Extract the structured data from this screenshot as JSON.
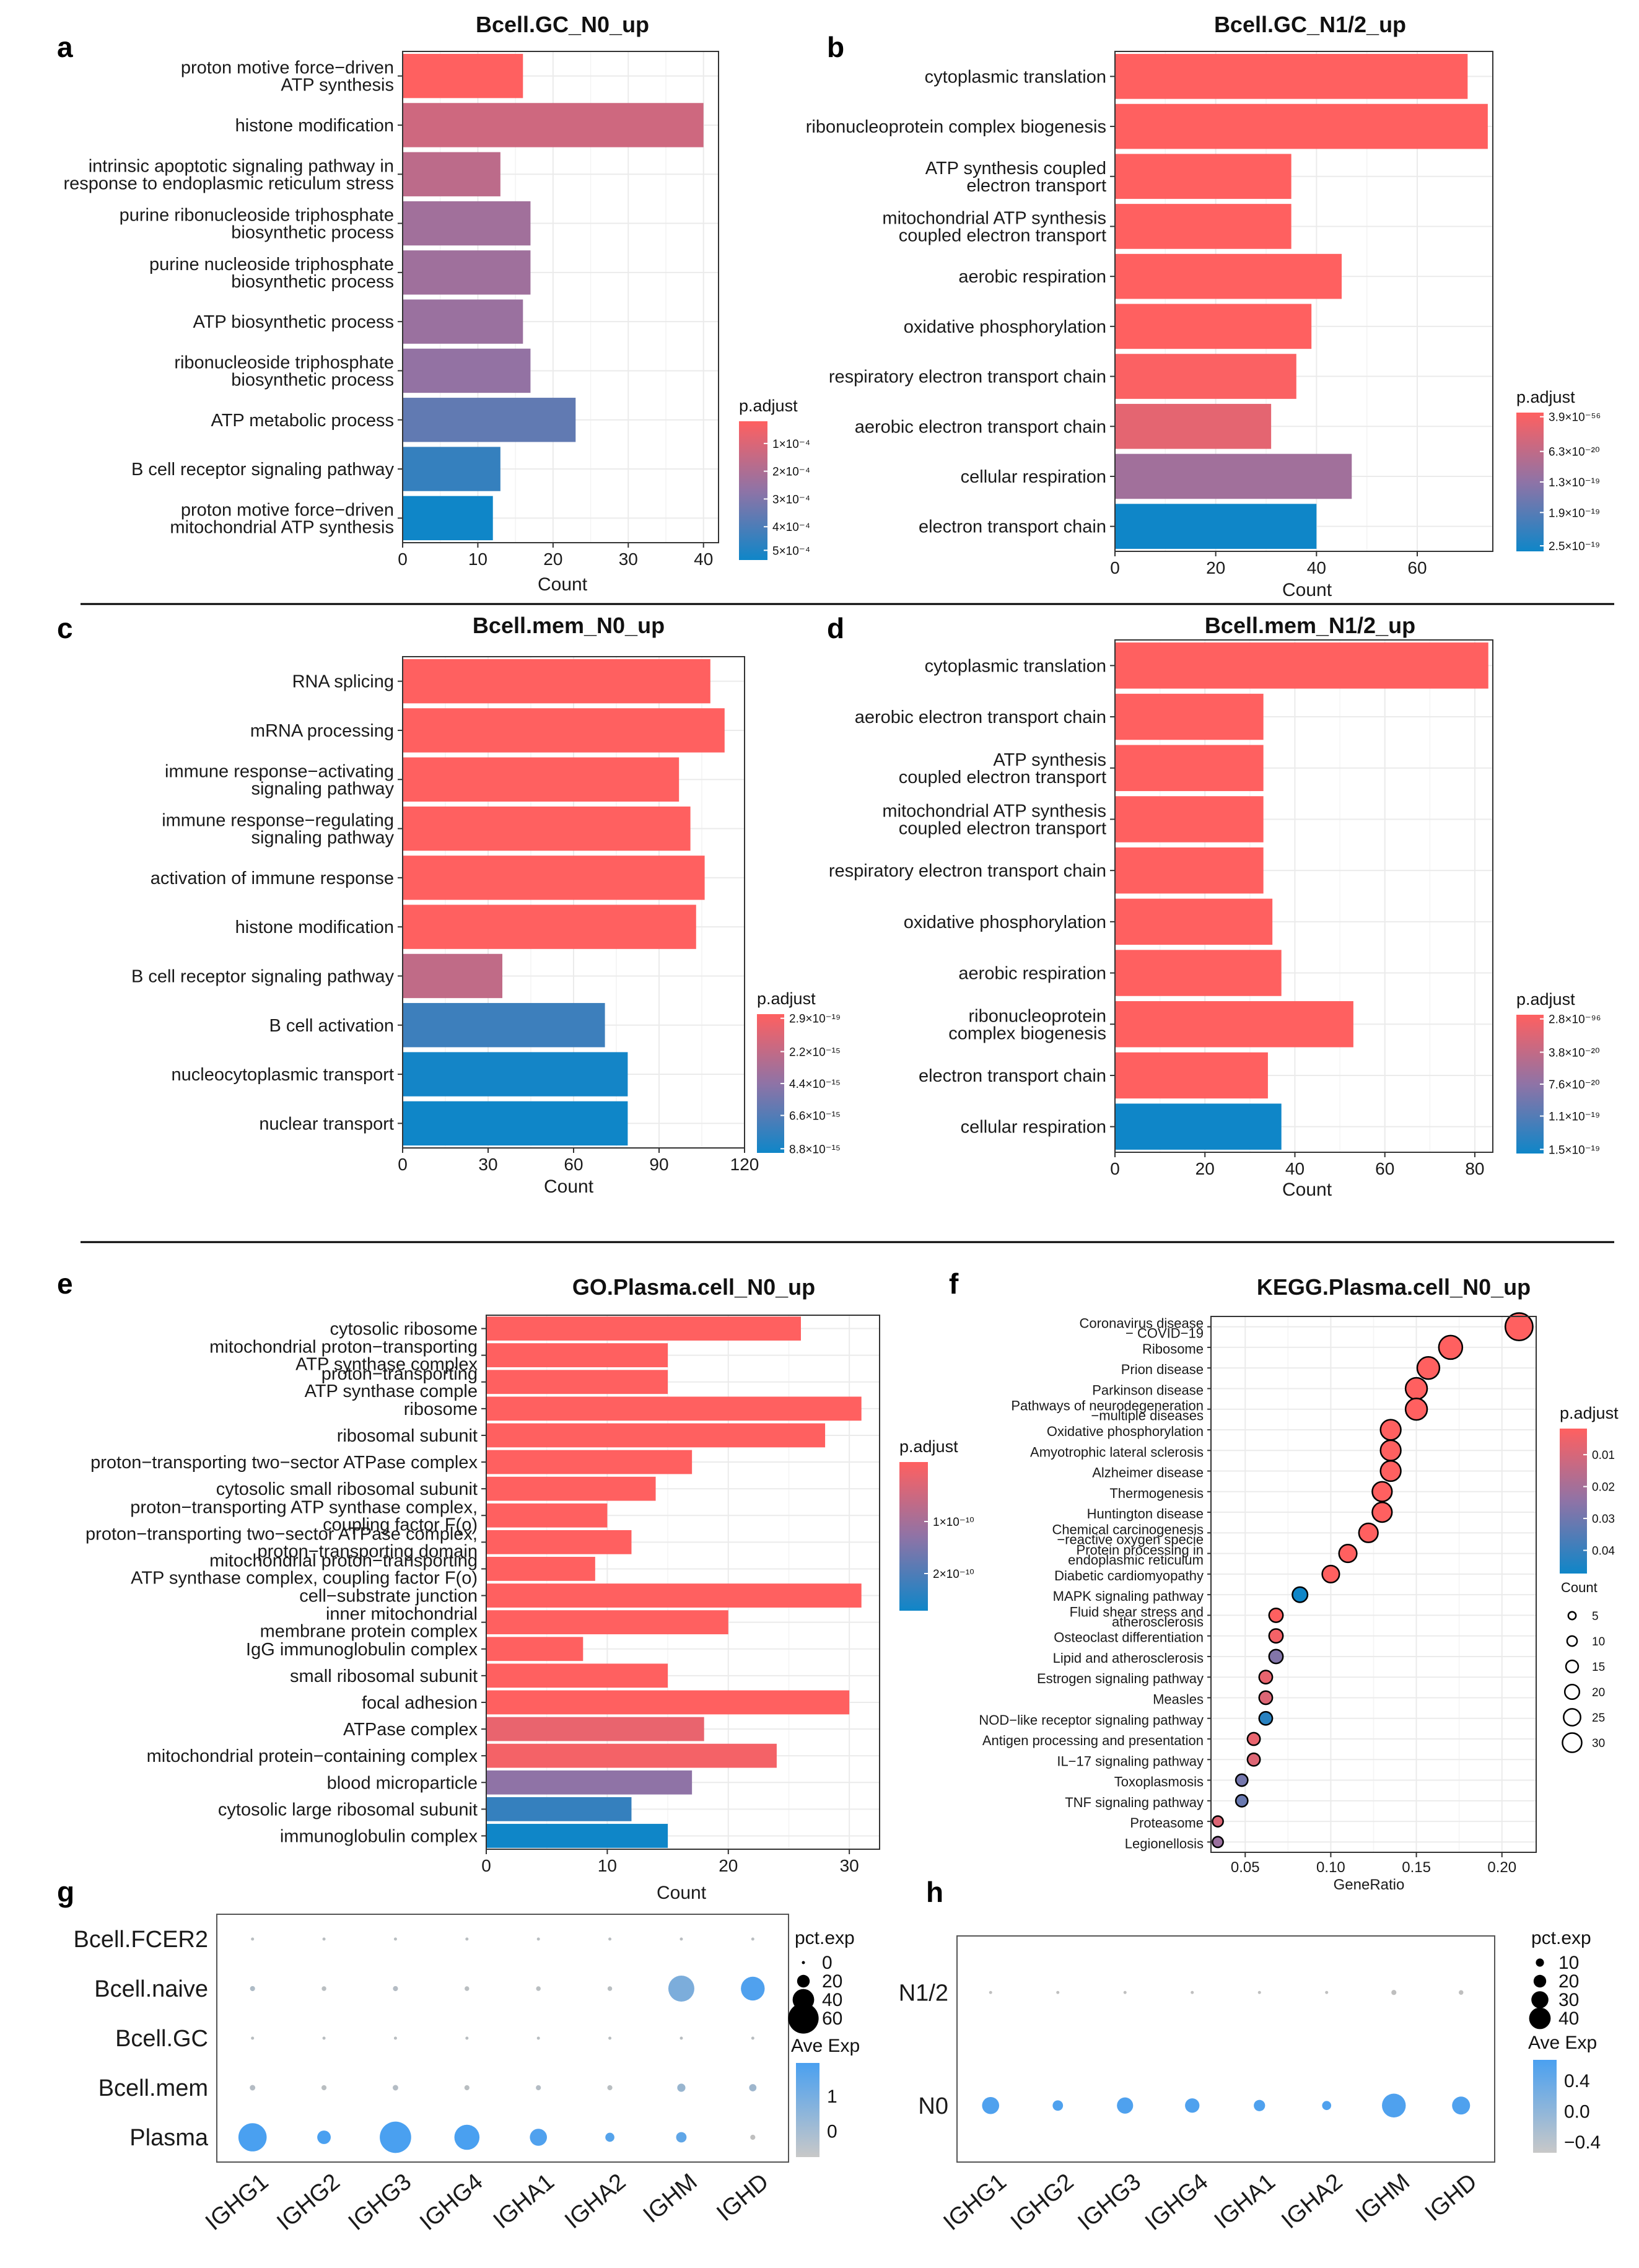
{
  "colors": {
    "low": "#0f86c8",
    "mid": "#8f73a6",
    "high": "#ff6060",
    "dotLow": "#bfbfbf",
    "dotHigh": "#4aa0f0"
  },
  "separators": [
    {
      "name": "separator-1"
    },
    {
      "name": "separator-2"
    }
  ],
  "chart_data": [
    {
      "id": "a",
      "panel_label": "a",
      "type": "bar",
      "orientation": "horizontal",
      "title": "Bcell.GC_N0_up",
      "xlabel": "Count",
      "xlim": [
        0,
        42
      ],
      "xticks": [
        0,
        10,
        20,
        30,
        40
      ],
      "categories": [
        [
          "proton motive force−driven",
          "ATP synthesis"
        ],
        [
          "histone modification"
        ],
        [
          "intrinsic apoptotic signaling pathway in",
          "response to endoplasmic reticulum stress"
        ],
        [
          "purine ribonucleoside triphosphate",
          "biosynthetic process"
        ],
        [
          "purine nucleoside triphosphate",
          "biosynthetic process"
        ],
        [
          "ATP biosynthetic process"
        ],
        [
          "ribonucleoside triphosphate",
          "biosynthetic process"
        ],
        [
          "ATP metabolic process"
        ],
        [
          "B cell receptor signaling pathway"
        ],
        [
          "proton motive force−driven",
          "mitochondrial ATP synthesis"
        ]
      ],
      "values": [
        16,
        40,
        13,
        17,
        17,
        16,
        17,
        23,
        13,
        12
      ],
      "color_values": [
        0,
        0.22,
        0.3,
        0.42,
        0.43,
        0.45,
        0.48,
        0.68,
        0.85,
        1
      ],
      "legend": {
        "title": "p.adjust",
        "labels": [
          "1×10⁻⁴",
          "2×10⁻⁴",
          "3×10⁻⁴",
          "4×10⁻⁴",
          "5×10⁻⁴"
        ],
        "positions": [
          0.16,
          0.36,
          0.56,
          0.76,
          0.93
        ]
      }
    },
    {
      "id": "b",
      "panel_label": "b",
      "type": "bar",
      "orientation": "horizontal",
      "title": "Bcell.GC_N1/2_up",
      "xlabel": "Count",
      "xlim": [
        0,
        75
      ],
      "xticks": [
        0,
        20,
        40,
        60
      ],
      "categories": [
        [
          "cytoplasmic translation"
        ],
        [
          "ribonucleoprotein complex biogenesis"
        ],
        [
          "ATP synthesis coupled",
          "electron transport"
        ],
        [
          "mitochondrial ATP synthesis",
          "coupled electron transport"
        ],
        [
          "aerobic respiration"
        ],
        [
          "oxidative phosphorylation"
        ],
        [
          "respiratory electron transport chain"
        ],
        [
          "aerobic electron transport chain"
        ],
        [
          "cellular respiration"
        ],
        [
          "electron transport chain"
        ]
      ],
      "values": [
        70,
        74,
        35,
        35,
        45,
        39,
        36,
        31,
        47,
        40
      ],
      "color_values": [
        0,
        0,
        0,
        0,
        0,
        0,
        0.02,
        0.12,
        0.42,
        1
      ],
      "legend": {
        "title": "p.adjust",
        "labels": [
          "3.9×10⁻⁵⁶",
          "6.3×10⁻²⁰",
          "1.3×10⁻¹⁹",
          "1.9×10⁻¹⁹",
          "2.5×10⁻¹⁹"
        ],
        "positions": [
          0.03,
          0.28,
          0.5,
          0.72,
          0.96
        ]
      }
    },
    {
      "id": "c",
      "panel_label": "c",
      "type": "bar",
      "orientation": "horizontal",
      "title": "Bcell.mem_N0_up",
      "xlabel": "Count",
      "xlim": [
        0,
        120
      ],
      "xticks": [
        0,
        30,
        60,
        90,
        120
      ],
      "categories": [
        [
          "RNA splicing"
        ],
        [
          "mRNA processing"
        ],
        [
          "immune response−activating",
          "signaling pathway"
        ],
        [
          "immune response−regulating",
          "signaling pathway"
        ],
        [
          "activation of immune response"
        ],
        [
          "histone modification"
        ],
        [
          "B cell receptor signaling pathway"
        ],
        [
          "B cell activation"
        ],
        [
          "nucleocytoplasmic transport"
        ],
        [
          "nuclear transport"
        ]
      ],
      "values": [
        108,
        113,
        97,
        101,
        106,
        103,
        35,
        71,
        79,
        79
      ],
      "color_values": [
        0,
        0,
        0,
        0,
        0,
        0,
        0.28,
        0.82,
        0.98,
        1
      ],
      "legend": {
        "title": "p.adjust",
        "labels": [
          "2.9×10⁻¹⁹",
          "2.2×10⁻¹⁵",
          "4.4×10⁻¹⁵",
          "6.6×10⁻¹⁵",
          "8.8×10⁻¹⁵"
        ],
        "positions": [
          0.03,
          0.27,
          0.5,
          0.73,
          0.97
        ]
      }
    },
    {
      "id": "d",
      "panel_label": "d",
      "type": "bar",
      "orientation": "horizontal",
      "title": "Bcell.mem_N1/2_up",
      "xlabel": "Count",
      "xlim": [
        0,
        84
      ],
      "xticks": [
        0,
        20,
        40,
        60,
        80
      ],
      "categories": [
        [
          "cytoplasmic translation"
        ],
        [
          "aerobic electron transport chain"
        ],
        [
          "ATP synthesis",
          "coupled electron transport"
        ],
        [
          "mitochondrial ATP synthesis",
          "coupled electron transport"
        ],
        [
          "respiratory electron transport chain"
        ],
        [
          "oxidative phosphorylation"
        ],
        [
          "aerobic respiration"
        ],
        [
          "ribonucleoprotein",
          "complex biogenesis"
        ],
        [
          "electron transport chain"
        ],
        [
          "cellular respiration"
        ]
      ],
      "values": [
        83,
        33,
        33,
        33,
        33,
        35,
        37,
        53,
        34,
        37
      ],
      "color_values": [
        0,
        0,
        0,
        0,
        0,
        0,
        0,
        0,
        0,
        1
      ],
      "legend": {
        "title": "p.adjust",
        "labels": [
          "2.8×10⁻⁹⁶",
          "3.8×10⁻²⁰",
          "7.6×10⁻²⁰",
          "1.1×10⁻¹⁹",
          "1.5×10⁻¹⁹"
        ],
        "positions": [
          0.03,
          0.27,
          0.5,
          0.73,
          0.97
        ]
      }
    },
    {
      "id": "e",
      "panel_label": "e",
      "type": "bar",
      "orientation": "horizontal",
      "title": "GO.Plasma.cell_N0_up",
      "xlabel": "Count",
      "xlim": [
        0,
        32.5
      ],
      "xticks": [
        0,
        10,
        20,
        30
      ],
      "categories": [
        [
          "cytosolic ribosome"
        ],
        [
          "mitochondrial proton−transporting",
          "ATP synthase complex"
        ],
        [
          "proton−transporting",
          "ATP synthase comple"
        ],
        [
          "ribosome"
        ],
        [
          "ribosomal subunit"
        ],
        [
          "proton−transporting two−sector ATPase complex"
        ],
        [
          "cytosolic small ribosomal subunit"
        ],
        [
          "proton−transporting ATP synthase complex,",
          "coupling factor F(o)"
        ],
        [
          "proton−transporting two−sector ATPase complex,",
          "proton−transporting domain"
        ],
        [
          "mitochondrial proton−transporting",
          "ATP synthase complex, coupling factor F(o)"
        ],
        [
          "cell−substrate junction"
        ],
        [
          "inner mitochondrial",
          "membrane protein complex"
        ],
        [
          "IgG immunoglobulin complex"
        ],
        [
          "small ribosomal subunit"
        ],
        [
          "focal adhesion"
        ],
        [
          "ATPase complex"
        ],
        [
          "mitochondrial protein−containing complex"
        ],
        [
          "blood microparticle"
        ],
        [
          "cytosolic large ribosomal subunit"
        ],
        [
          "immunoglobulin complex"
        ]
      ],
      "values": [
        26,
        15,
        15,
        31,
        28,
        17,
        14,
        10,
        12,
        9,
        31,
        20,
        8,
        15,
        30,
        18,
        24,
        17,
        12,
        15
      ],
      "color_values": [
        0,
        0,
        0,
        0,
        0,
        0,
        0,
        0,
        0,
        0,
        0,
        0,
        0,
        0,
        0,
        0.1,
        0.05,
        0.5,
        0.85,
        1
      ],
      "legend": {
        "title": "p.adjust",
        "labels": [
          "1×10⁻¹⁰",
          "2×10⁻¹⁰"
        ],
        "positions": [
          0.4,
          0.75
        ]
      }
    },
    {
      "id": "f",
      "panel_label": "f",
      "type": "scatter",
      "title": "KEGG.Plasma.cell_N0_up",
      "xlabel": "GeneRatio",
      "xlim": [
        0.03,
        0.22
      ],
      "xticks": [
        0.05,
        0.1,
        0.15,
        0.2
      ],
      "categories": [
        [
          "Coronavirus disease",
          "− COVID−19"
        ],
        [
          "Ribosome"
        ],
        [
          "Prion disease"
        ],
        [
          "Parkinson disease"
        ],
        [
          "Pathways of neurodegeneration",
          "−multiple diseases"
        ],
        [
          "Oxidative phosphorylation"
        ],
        [
          "Amyotrophic lateral sclerosis"
        ],
        [
          "Alzheimer disease"
        ],
        [
          "Thermogenesis"
        ],
        [
          "Huntington disease"
        ],
        [
          "Chemical carcinogenesis",
          "−reactive oxygen specie"
        ],
        [
          "Protein processing in",
          "endoplasmic reticulum"
        ],
        [
          "Diabetic cardiomyopathy"
        ],
        [
          "MAPK signaling pathway"
        ],
        [
          "Fluid shear stress and",
          "atherosclerosis"
        ],
        [
          "Osteoclast differentiation"
        ],
        [
          "Lipid and atherosclerosis"
        ],
        [
          "Estrogen signaling pathway"
        ],
        [
          "Measles"
        ],
        [
          "NOD−like receptor signaling pathway"
        ],
        [
          "Antigen processing and presentation"
        ],
        [
          "IL−17 signaling pathway"
        ],
        [
          "Toxoplasmosis"
        ],
        [
          "TNF signaling pathway"
        ],
        [
          "Proteasome"
        ],
        [
          "Legionellosis"
        ]
      ],
      "x": [
        0.21,
        0.17,
        0.157,
        0.15,
        0.15,
        0.135,
        0.135,
        0.135,
        0.13,
        0.13,
        0.122,
        0.11,
        0.1,
        0.082,
        0.068,
        0.068,
        0.068,
        0.062,
        0.062,
        0.062,
        0.055,
        0.055,
        0.048,
        0.048,
        0.034,
        0.034
      ],
      "count": [
        31,
        25,
        23,
        22,
        22,
        20,
        20,
        20,
        19,
        19,
        18,
        16,
        15,
        12,
        10,
        10,
        10,
        9,
        9,
        9,
        8,
        8,
        7,
        7,
        5,
        5
      ],
      "color_values": [
        0,
        0,
        0,
        0,
        0,
        0,
        0,
        0,
        0,
        0,
        0,
        0,
        0,
        1,
        0,
        0.05,
        0.55,
        0.1,
        0.15,
        0.9,
        0.1,
        0.15,
        0.6,
        0.65,
        0.15,
        0.45
      ],
      "legend": {
        "title": "p.adjust",
        "labels": [
          "0.01",
          "0.02",
          "0.03",
          "0.04"
        ],
        "positions": [
          0.18,
          0.4,
          0.62,
          0.84
        ]
      },
      "size_legend": {
        "title": "Count",
        "values": [
          5,
          10,
          15,
          20,
          25,
          30
        ]
      }
    },
    {
      "id": "g",
      "panel_label": "g",
      "type": "scatter",
      "subtype": "dotplot",
      "genes": [
        "IGHG1",
        "IGHG2",
        "IGHG3",
        "IGHG4",
        "IGHA1",
        "IGHA2",
        "IGHM",
        "IGHD"
      ],
      "groups": [
        "Bcell.FCER2",
        "Bcell.naive",
        "Bcell.GC",
        "Bcell.mem",
        "Plasma"
      ],
      "pct_exp": [
        [
          1,
          1,
          1,
          1,
          1,
          1,
          1,
          1
        ],
        [
          3,
          2,
          3,
          2,
          2,
          2,
          50,
          45
        ],
        [
          1,
          1,
          1,
          1,
          1,
          1,
          1,
          1
        ],
        [
          4,
          3,
          4,
          3,
          3,
          3,
          10,
          8
        ],
        [
          55,
          22,
          62,
          48,
          30,
          12,
          15,
          3
        ]
      ],
      "ave_exp": [
        [
          -0.3,
          -0.3,
          -0.3,
          -0.3,
          -0.3,
          -0.3,
          -0.3,
          -0.3
        ],
        [
          -0.1,
          -0.3,
          -0.2,
          -0.3,
          -0.3,
          -0.3,
          0.8,
          1.6
        ],
        [
          -0.3,
          -0.3,
          -0.3,
          -0.3,
          -0.3,
          -0.3,
          -0.3,
          -0.3
        ],
        [
          -0.2,
          -0.3,
          -0.2,
          -0.3,
          -0.2,
          -0.3,
          0.3,
          0.2
        ],
        [
          1.7,
          1.7,
          1.7,
          1.7,
          1.6,
          1.5,
          1.3,
          -0.4
        ]
      ],
      "size_legend": {
        "title": "pct.exp",
        "values": [
          0,
          20,
          40,
          60
        ]
      },
      "color_legend": {
        "title": "Ave Exp",
        "labels": [
          "1",
          "0"
        ],
        "positions": [
          0.35,
          0.72
        ]
      }
    },
    {
      "id": "h",
      "panel_label": "h",
      "type": "scatter",
      "subtype": "dotplot",
      "genes": [
        "IGHG1",
        "IGHG2",
        "IGHG3",
        "IGHG4",
        "IGHA1",
        "IGHA2",
        "IGHM",
        "IGHD"
      ],
      "groups": [
        "N1/2",
        "N0"
      ],
      "pct_exp": [
        [
          1,
          1,
          1,
          1,
          1,
          1,
          3,
          2
        ],
        [
          30,
          15,
          28,
          24,
          17,
          12,
          45,
          32
        ]
      ],
      "ave_exp": [
        [
          -0.5,
          -0.5,
          -0.5,
          -0.5,
          -0.5,
          -0.5,
          -0.5,
          -0.5
        ],
        [
          0.55,
          0.55,
          0.55,
          0.55,
          0.55,
          0.55,
          0.55,
          0.55
        ]
      ],
      "size_legend": {
        "title": "pct.exp",
        "values": [
          10,
          20,
          30,
          40
        ]
      },
      "color_legend": {
        "title": "Ave Exp",
        "labels": [
          "0.4",
          "0.0",
          "−0.4"
        ],
        "positions": [
          0.22,
          0.55,
          0.88
        ]
      }
    }
  ]
}
